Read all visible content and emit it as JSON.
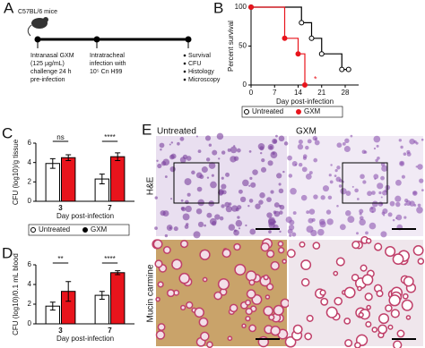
{
  "panel_labels": [
    "A",
    "B",
    "C",
    "D",
    "E"
  ],
  "diagram": {
    "mouse_label": "C57BL/6 mice",
    "steps": [
      [
        "Intranasal GXM",
        "(125 µg/mL)",
        "challenge 24 h",
        "pre-infection"
      ],
      [
        "Intratracheal",
        "infection with",
        "10⁵ Cn H99"
      ]
    ],
    "outcomes": [
      "Survival",
      "CFU",
      "Histology",
      "Microscopy"
    ]
  },
  "chart_data": [
    {
      "type": "line",
      "xlabel": "Day post-infection",
      "ylabel": "Percent survival",
      "xlim": [
        0,
        32
      ],
      "xticks": [
        0,
        7,
        14,
        21,
        28
      ],
      "ylim": [
        0,
        100
      ],
      "yticks": [
        0,
        50,
        100
      ],
      "drawstyle": "steps-post",
      "legend": true,
      "series": [
        {
          "name": "Untreated",
          "color": "#000000",
          "marker": "open",
          "x": [
            0,
            15,
            18,
            21,
            27,
            29
          ],
          "values": [
            100,
            80,
            60,
            40,
            20,
            20
          ]
        },
        {
          "name": "GXM",
          "color": "#e8141c",
          "marker": "filled",
          "x": [
            0,
            10,
            14,
            16
          ],
          "values": [
            100,
            60,
            40,
            0
          ]
        }
      ],
      "annotations": [
        "*"
      ]
    },
    {
      "type": "bar",
      "xlabel": "Day post-infection",
      "ylabel": "CFU (log10)/g tissue",
      "categories": [
        "3",
        "7"
      ],
      "ylim": [
        0,
        6
      ],
      "yticks": [
        0,
        2,
        4,
        6
      ],
      "legend": true,
      "series": [
        {
          "name": "Untreated",
          "color": "#ffffff",
          "values": [
            3.9,
            2.3
          ],
          "errors": [
            0.5,
            0.5
          ]
        },
        {
          "name": "GXM",
          "color": "#e8141c",
          "values": [
            4.5,
            4.6
          ],
          "errors": [
            0.3,
            0.4
          ]
        }
      ],
      "significance": [
        "ns",
        "****"
      ]
    },
    {
      "type": "bar",
      "xlabel": "Day post-infection",
      "ylabel": "CFU (log10)/0.1 mL blood",
      "categories": [
        "3",
        "7"
      ],
      "ylim": [
        0,
        6
      ],
      "yticks": [
        0,
        2,
        4,
        6
      ],
      "legend": false,
      "series": [
        {
          "name": "Untreated",
          "color": "#ffffff",
          "values": [
            1.8,
            2.9
          ],
          "errors": [
            0.4,
            0.4
          ]
        },
        {
          "name": "GXM",
          "color": "#e8141c",
          "values": [
            3.3,
            5.2
          ],
          "errors": [
            1.0,
            0.2
          ]
        }
      ],
      "significance": [
        "**",
        "****"
      ]
    }
  ],
  "histology": {
    "columns": [
      "Untreated",
      "GXM"
    ],
    "rows": [
      "H&E",
      "Mucin carmine"
    ]
  }
}
